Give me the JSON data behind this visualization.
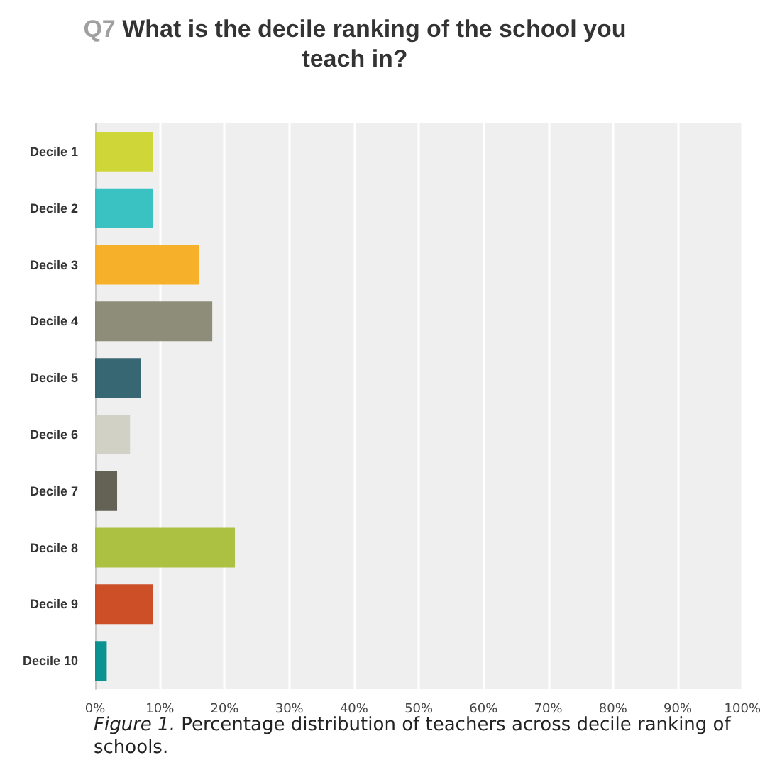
{
  "chart_data": {
    "type": "bar",
    "orientation": "horizontal",
    "title": "Q7 What is the decile ranking of the school you teach in?",
    "categories": [
      "Decile 1",
      "Decile 2",
      "Decile 3",
      "Decile 4",
      "Decile 5",
      "Decile 6",
      "Decile 7",
      "Decile 8",
      "Decile 9",
      "Decile 10"
    ],
    "values": [
      8.9,
      8.9,
      16.1,
      18.1,
      7.1,
      5.4,
      3.4,
      21.6,
      8.9,
      1.8
    ],
    "colors": [
      "#ccd42c",
      "#2fbfbf",
      "#f7ac1e",
      "#878772",
      "#2d5f6d",
      "#d0cfc2",
      "#5b5a4b",
      "#a8bd37",
      "#c9461c",
      "#008c8c"
    ],
    "xlim": [
      0,
      100
    ],
    "xticks": [
      {
        "value": 0,
        "label": "0%"
      },
      {
        "value": 10,
        "label": "10%"
      },
      {
        "value": 20,
        "label": "20%"
      },
      {
        "value": 30,
        "label": "30%"
      },
      {
        "value": 40,
        "label": "40%"
      },
      {
        "value": 50,
        "label": "50%"
      },
      {
        "value": 60,
        "label": "60%"
      },
      {
        "value": 70,
        "label": "70%"
      },
      {
        "value": 80,
        "label": "80%"
      },
      {
        "value": 90,
        "label": "90%"
      },
      {
        "value": 100,
        "label": "100%"
      }
    ],
    "grid": "x",
    "annotations": [
      "Figure 1. Percentage distribution of teachers across decile ranking of schools."
    ]
  }
}
